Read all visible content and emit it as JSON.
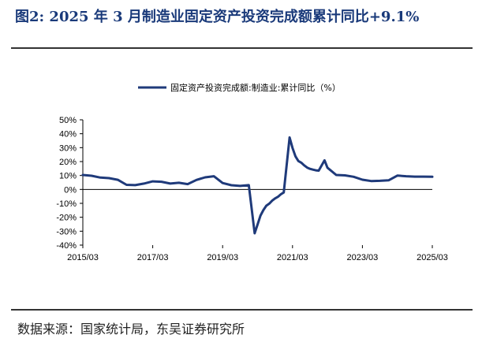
{
  "figure": {
    "title": "图2:  2025 年 3 月制造业固定资产投资完成额累计同比+9.1%",
    "source": "数据来源：国家统计局，东吴证券研究所"
  },
  "colors": {
    "line": "#1f3a7a",
    "title": "#1a3a7a"
  },
  "chart_data": {
    "type": "line",
    "title": "",
    "xlabel": "",
    "ylabel": "",
    "ylim": [
      -40,
      50
    ],
    "y_ticks": [
      50,
      40,
      30,
      20,
      10,
      0,
      -10,
      -20,
      -30,
      -40
    ],
    "y_tick_labels": [
      "50%",
      "40%",
      "30%",
      "20%",
      "10%",
      "0%",
      "-10%",
      "-20%",
      "-30%",
      "-40%"
    ],
    "x_tick_labels": [
      "2015/03",
      "2017/03",
      "2019/03",
      "2021/03",
      "2023/03",
      "2025/03"
    ],
    "grid": false,
    "legend": "top-center",
    "series": [
      {
        "name": "固定资产投资完成额:制造业:累计同比（%）",
        "x": [
          "2015/03",
          "2015/06",
          "2015/09",
          "2015/12",
          "2016/03",
          "2016/06",
          "2016/09",
          "2016/12",
          "2017/03",
          "2017/06",
          "2017/09",
          "2017/12",
          "2018/03",
          "2018/06",
          "2018/09",
          "2018/12",
          "2019/03",
          "2019/06",
          "2019/09",
          "2019/12",
          "2020/02",
          "2020/03",
          "2020/04",
          "2020/05",
          "2020/06",
          "2020/07",
          "2020/08",
          "2020/09",
          "2020/10",
          "2020/11",
          "2020/12",
          "2021/02",
          "2021/03",
          "2021/04",
          "2021/05",
          "2021/06",
          "2021/07",
          "2021/08",
          "2021/09",
          "2021/10",
          "2021/11",
          "2021/12",
          "2022/02",
          "2022/03",
          "2022/06",
          "2022/09",
          "2022/12",
          "2023/03",
          "2023/06",
          "2023/09",
          "2023/12",
          "2024/03",
          "2024/06",
          "2024/09",
          "2024/12",
          "2025/03"
        ],
        "values": [
          10.4,
          9.8,
          8.5,
          8.1,
          6.9,
          3.3,
          3.1,
          4.2,
          5.8,
          5.5,
          4.2,
          4.8,
          3.8,
          6.8,
          8.7,
          9.5,
          4.6,
          3.0,
          2.5,
          3.1,
          -31.5,
          -25.2,
          -18.8,
          -14.8,
          -11.7,
          -10.2,
          -8.1,
          -6.5,
          -5.3,
          -3.5,
          -2.2,
          37.3,
          29.8,
          23.8,
          20.4,
          19.2,
          17.3,
          15.7,
          14.8,
          14.2,
          13.7,
          13.5,
          20.9,
          15.6,
          10.4,
          10.1,
          9.1,
          7.0,
          6.0,
          6.2,
          6.5,
          9.9,
          9.5,
          9.2,
          9.2,
          9.1
        ]
      }
    ]
  }
}
